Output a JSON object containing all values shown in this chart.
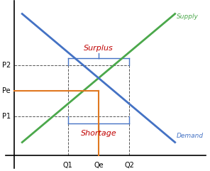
{
  "title": "",
  "supply_label": "Supply",
  "demand_label": "Demand",
  "surplus_label": "Surplus",
  "shortage_label": "Shortage",
  "supply_color": "#4ba84b",
  "demand_color": "#4472c4",
  "equilibrium_color": "#e07820",
  "surplus_color": "#c00000",
  "shortage_color": "#c00000",
  "dashed_color": "#555555",
  "background_color": "#ffffff",
  "Q1": 3.5,
  "Qe": 5.5,
  "Q2": 7.5,
  "P1": 3.0,
  "Pe": 5.0,
  "P2": 7.0,
  "xlim_max": 12.5,
  "ylim_min": -1.0,
  "ylim_max": 12.0
}
